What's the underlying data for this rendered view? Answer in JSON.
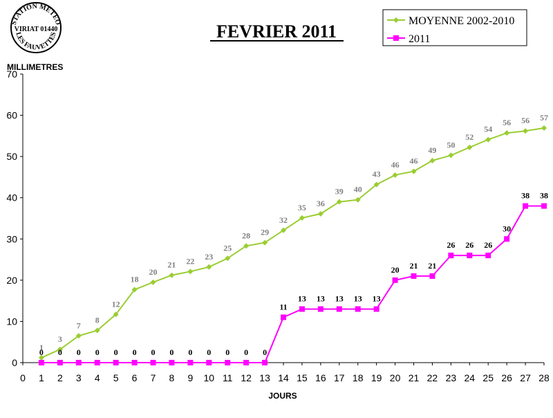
{
  "stamp": {
    "line_top": "STATION METEO",
    "line_mid": "VIRIAT 01440",
    "line_bottom": "LES FAUVETTES"
  },
  "colors": {
    "average": "#9acd32",
    "current": "#ff00ff",
    "average_labels": "#808080",
    "current_labels": "#000000"
  },
  "chart_data": {
    "type": "line",
    "title": "FEVRIER 2011",
    "xlabel": "JOURS",
    "ylabel": "MILLIMETRES",
    "xlim": [
      0,
      28
    ],
    "ylim": [
      0,
      70
    ],
    "x_ticks": [
      0,
      1,
      2,
      3,
      4,
      5,
      6,
      7,
      8,
      9,
      10,
      11,
      12,
      13,
      14,
      15,
      16,
      17,
      18,
      19,
      20,
      21,
      22,
      23,
      24,
      25,
      26,
      27,
      28
    ],
    "y_ticks": [
      0,
      10,
      20,
      30,
      40,
      50,
      60,
      70
    ],
    "grid": false,
    "legend_position": "top-right",
    "series": [
      {
        "name": "MOYENNE 2002-2010",
        "color": "#9acd32",
        "marker": "diamond",
        "x": [
          1,
          2,
          3,
          4,
          5,
          6,
          7,
          8,
          9,
          10,
          11,
          12,
          13,
          14,
          15,
          16,
          17,
          18,
          19,
          20,
          21,
          22,
          23,
          24,
          25,
          26,
          27,
          28
        ],
        "values": [
          1.2,
          3.2,
          6.5,
          7.8,
          11.7,
          17.7,
          19.5,
          21.2,
          22.1,
          23.2,
          25.3,
          28.3,
          29.1,
          32.1,
          35.1,
          36.1,
          39.0,
          39.5,
          43.2,
          45.5,
          46.4,
          49.0,
          50.3,
          52.2,
          54.1,
          55.7,
          56.2,
          56.9
        ],
        "labels": [
          "1",
          "3",
          "7",
          "8",
          "12",
          "18",
          "20",
          "21",
          "22",
          "23",
          "25",
          "28",
          "29",
          "32",
          "35",
          "36",
          "39",
          "40",
          "43",
          "46",
          "46",
          "49",
          "50",
          "52",
          "54",
          "56",
          "56",
          "57"
        ]
      },
      {
        "name": "2011",
        "color": "#ff00ff",
        "marker": "square",
        "x": [
          1,
          2,
          3,
          4,
          5,
          6,
          7,
          8,
          9,
          10,
          11,
          12,
          13,
          14,
          15,
          16,
          17,
          18,
          19,
          20,
          21,
          22,
          23,
          24,
          25,
          26,
          27,
          28
        ],
        "values": [
          0,
          0,
          0,
          0,
          0,
          0,
          0,
          0,
          0,
          0,
          0,
          0,
          0,
          11,
          13,
          13,
          13,
          13,
          13,
          20,
          21,
          21,
          26,
          26,
          26,
          30,
          38,
          38
        ],
        "labels": [
          "0",
          "0",
          "0",
          "0",
          "0",
          "0",
          "0",
          "0",
          "0",
          "0",
          "0",
          "0",
          "0",
          "11",
          "13",
          "13",
          "13",
          "13",
          "13",
          "20",
          "21",
          "21",
          "26",
          "26",
          "26",
          "30",
          "38",
          "38"
        ]
      }
    ]
  }
}
